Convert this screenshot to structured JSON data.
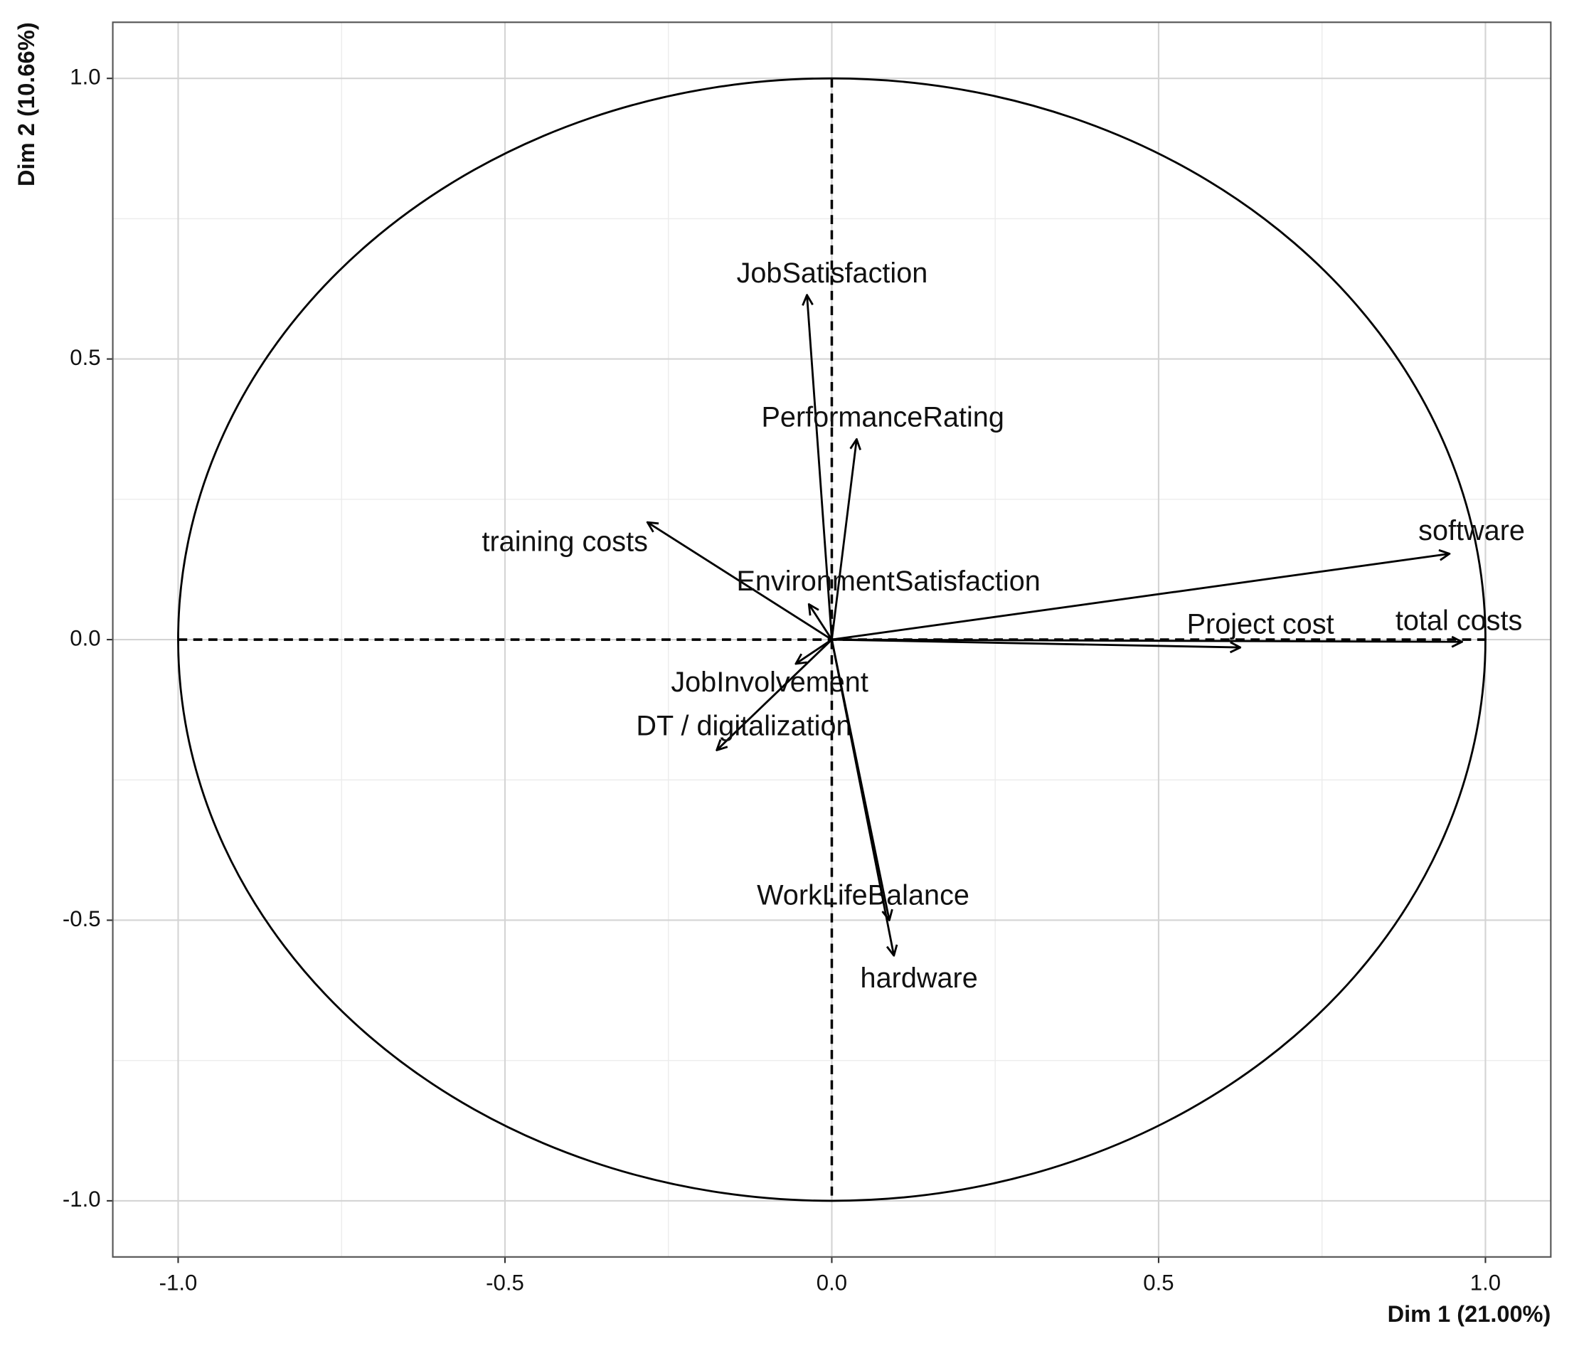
{
  "chart_data": {
    "type": "correlation-circle",
    "x_label": "Dim 1 (21.00%)",
    "y_label": "Dim 2 (10.66%)",
    "variables": [
      "JobSatisfaction",
      "PerformanceRating",
      "training costs",
      "EnvironmentSatisfaction",
      "software",
      "total costs",
      "Project cost",
      "JobInvolvement",
      "DT / digitalization",
      "WorkLifeBalance",
      "hardware"
    ],
    "x": [
      -0.038,
      0.038,
      -0.282,
      -0.035,
      0.945,
      0.964,
      0.625,
      -0.055,
      -0.176,
      0.088,
      0.095
    ],
    "y": [
      0.614,
      0.357,
      0.209,
      0.063,
      0.153,
      -0.004,
      -0.014,
      -0.043,
      -0.197,
      -0.5,
      -0.563
    ],
    "xlim": [
      -1.1,
      1.1
    ],
    "ylim": [
      -1.1,
      1.1
    ],
    "xticks": [
      {
        "value": -1,
        "label": "-1.0"
      },
      {
        "value": -0.5,
        "label": "-0.5"
      },
      {
        "value": 0,
        "label": "0.0"
      },
      {
        "value": 0.5,
        "label": "0.5"
      },
      {
        "value": 1,
        "label": "1.0"
      }
    ],
    "yticks": [
      {
        "value": -1,
        "label": "-1.0"
      },
      {
        "value": -0.5,
        "label": "-0.5"
      },
      {
        "value": 0,
        "label": "0.0"
      },
      {
        "value": 0.5,
        "label": "0.5"
      },
      {
        "value": 1,
        "label": "1.0"
      }
    ],
    "minor_xticks": [
      -0.75,
      -0.25,
      0.25,
      0.75
    ],
    "minor_yticks": [
      -0.75,
      -0.25,
      0.25,
      0.75
    ],
    "grid": true,
    "unit_circle": true,
    "origin_lines": true,
    "color": "#000000"
  }
}
